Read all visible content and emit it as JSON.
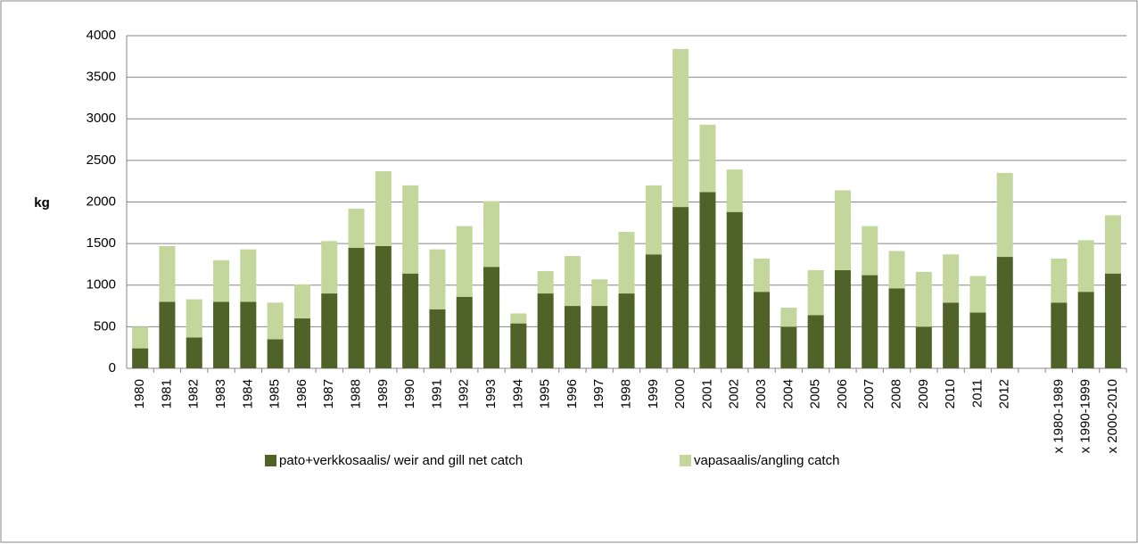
{
  "chart_data": {
    "type": "stacked_bar",
    "y_label": "kg",
    "categories": [
      "1980",
      "1981",
      "1982",
      "1983",
      "1984",
      "1985",
      "1986",
      "1987",
      "1988",
      "1989",
      "1990",
      "1991",
      "1992",
      "1993",
      "1994",
      "1995",
      "1996",
      "1997",
      "1998",
      "1999",
      "2000",
      "2001",
      "2002",
      "2003",
      "2004",
      "2005",
      "2006",
      "2007",
      "2008",
      "2009",
      "2010",
      "2011",
      "2012",
      null,
      "x 1980-1989",
      "x 1990-1999",
      "x 2000-2010"
    ],
    "series": [
      {
        "name": "pato+verkkosaalis/ weir and gill net catch",
        "color": "#4f6228",
        "values": [
          240,
          800,
          370,
          800,
          800,
          350,
          600,
          900,
          1450,
          1470,
          1140,
          710,
          860,
          1220,
          540,
          900,
          750,
          750,
          900,
          1370,
          1940,
          2120,
          1880,
          920,
          500,
          640,
          1180,
          1120,
          960,
          500,
          790,
          670,
          1340,
          null,
          790,
          920,
          1140
        ]
      },
      {
        "name": "vapasaalis/angling catch",
        "color": "#c3d69b",
        "values": [
          260,
          670,
          460,
          500,
          630,
          440,
          410,
          630,
          470,
          900,
          1060,
          720,
          850,
          790,
          120,
          270,
          600,
          320,
          740,
          830,
          1900,
          810,
          510,
          400,
          230,
          540,
          960,
          590,
          450,
          660,
          580,
          440,
          1010,
          null,
          530,
          620,
          700
        ]
      }
    ],
    "ylim": [
      0,
      4000
    ],
    "yticks": [
      0,
      500,
      1000,
      1500,
      2000,
      2500,
      3000,
      3500,
      4000
    ],
    "grid": true,
    "legend": "bottom"
  }
}
